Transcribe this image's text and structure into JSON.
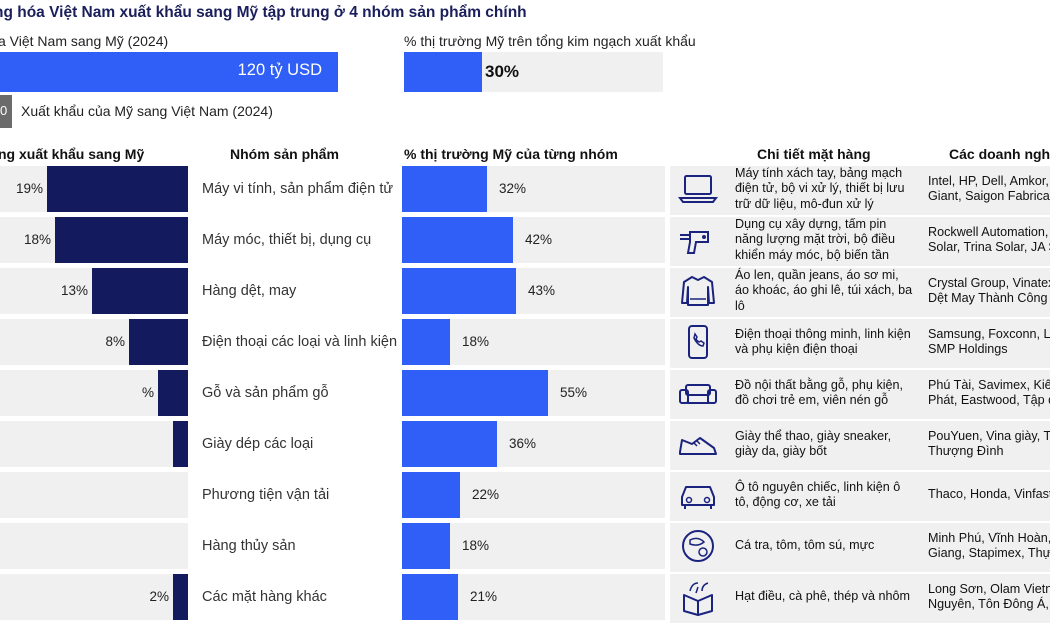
{
  "title": "ng hóa Việt Nam xuất khẩu sang Mỹ tập trung ở 4 nhóm sản phẩm chính",
  "summary": {
    "export_label": "a Việt Nam sang Mỹ (2024)",
    "export_value": "120 tỷ USD",
    "share_label": "% thị trường Mỹ trên tổng kim ngạch xuất khẩu",
    "share_value": "30%",
    "share_fraction": 0.3,
    "import_label": "Xuất khẩu của Mỹ sang Việt Nam (2024)",
    "import_box_text": "0"
  },
  "headers": {
    "col1": "ng xuất khẩu sang Mỹ",
    "col2": "Nhóm sản phẩm",
    "col3": "% thị trường Mỹ của từng nhóm",
    "col4": "Chi tiết mặt hàng",
    "col5": "Các doanh nghi"
  },
  "colors": {
    "navy": "#141a5e",
    "blue": "#2f5ff6",
    "row_bg": "#f0f0f0"
  },
  "chart_data": [
    {
      "type": "bar",
      "categories": [
        "Máy vi tính, sản phẩm điện tử",
        "Máy móc, thiết bị, dụng cụ",
        "Hàng dệt, may",
        "Điện thoại các loại và linh kiện",
        "Gỗ và sản phẩm gỗ",
        "Giày dép các loại",
        "Phương tiện vận tải",
        "Hàng thủy sản",
        "Các mặt hàng khác"
      ],
      "values": [
        19,
        18,
        13,
        8,
        4,
        2,
        0,
        0,
        2
      ],
      "value_labels": [
        "19%",
        "18%",
        "13%",
        "8%",
        "%",
        "",
        "",
        "",
        "2%"
      ],
      "series": [
        {
          "name": "",
          "values": [
            19,
            18,
            13,
            8,
            4,
            2,
            0,
            0,
            2
          ]
        }
      ]
    },
    {
      "type": "bar",
      "categories": [
        "Máy vi tính, sản phẩm điện tử",
        "Máy móc, thiết bị, dụng cụ",
        "Hàng dệt, may",
        "Điện thoại các loại và linh kiện",
        "Gỗ và sản phẩm gỗ",
        "Giày dép các loại",
        "Phương tiện vận tải",
        "Hàng thủy sản",
        "Các mặt hàng khác"
      ],
      "values": [
        32,
        42,
        43,
        18,
        55,
        36,
        22,
        18,
        21
      ],
      "value_labels": [
        "32%",
        "42%",
        "43%",
        "18%",
        "55%",
        "36%",
        "22%",
        "18%",
        "21%"
      ],
      "ylim": [
        0,
        100
      ]
    }
  ],
  "details": [
    {
      "icon": "laptop-icon",
      "items": "Máy tính xách tay, bảng mạch điện tử, bộ vi xử lý, thiết bị lưu trữ dữ liệu, mô-đun xử lý",
      "companies": "Intel, HP, Dell, Amkor, S\nGiant, Saigon Fabricat"
    },
    {
      "icon": "drill-icon",
      "items": "Dụng cụ xây dựng, tấm pin năng lượng mặt trời, bộ điều khiển máy móc, bộ biến tần",
      "companies": "Rockwell Automation,\nSolar, Trina Solar, JA S"
    },
    {
      "icon": "sweater-icon",
      "items": "Áo len, quần jeans, áo sơ mi, áo khoác, áo ghi lê, túi xách, ba lô",
      "companies": "Crystal Group, Vinatex\nDệt May Thành Công"
    },
    {
      "icon": "smartphone-icon",
      "items": "Điện thoại thông minh, linh kiện và phụ kiện điện thoại",
      "companies": "Samsung, Foxconn, Lu\nSMP Holdings"
    },
    {
      "icon": "sofa-icon",
      "items": "Đồ nội thất bằng gỗ, phụ kiện, đồ chơi trẻ em, viên nén gỗ",
      "companies": "Phú Tài, Savimex, Kiến\nPhát, Eastwood, Tập đ"
    },
    {
      "icon": "sneaker-icon",
      "items": "Giày thể thao, giày sneaker, giày da, giày bốt",
      "companies": "PouYuen, Vina giày, Tâ\nThượng Đình"
    },
    {
      "icon": "car-icon",
      "items": "Ô tô nguyên chiếc, linh kiện ô tô, động cơ, xe tải",
      "companies": "Thaco, Honda, Vinfast"
    },
    {
      "icon": "seafood-icon",
      "items": "Cá tra, tôm, tôm sú, mực",
      "companies": "Minh Phú, Vĩnh Hoàn,\nGiang, Stapimex, Thực"
    },
    {
      "icon": "box-icon",
      "items": "Hạt điều, cà phê, thép và nhôm",
      "companies": "Long Sơn, Olam Vietn\nNguyên, Tôn Đông Á, I"
    }
  ]
}
